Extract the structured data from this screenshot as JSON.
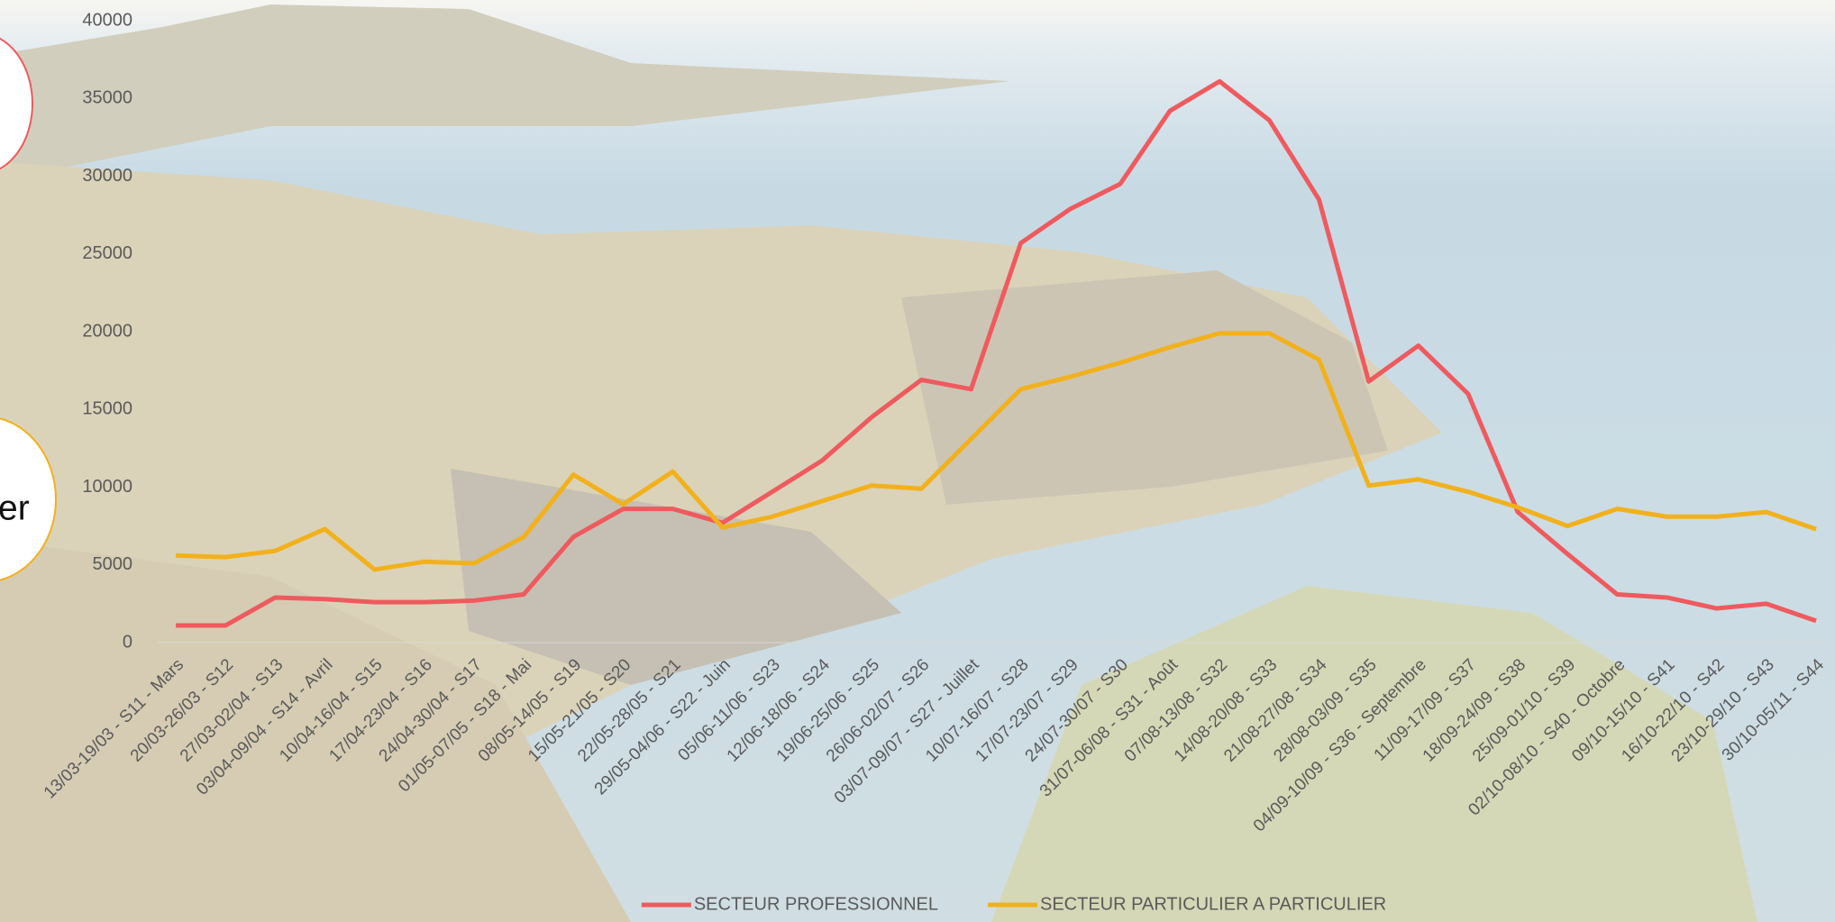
{
  "chart_data": {
    "type": "line",
    "categories": [
      "13/03-19/03 - S11 - Mars",
      "20/03-26/03 - S12",
      "27/03-02/04 - S13",
      "03/04-09/04 - S14 - Avril",
      "10/04-16/04 - S15",
      "17/04-23/04 - S16",
      "24/04-30/04 - S17",
      "01/05-07/05 - S18 - Mai",
      "08/05-14/05 - S19",
      "15/05-21/05 - S20",
      "22/05-28/05 - S21",
      "29/05-04/06 - S22 - Juin",
      "05/06-11/06 - S23",
      "12/06-18/06 - S24",
      "19/06-25/06 - S25",
      "26/06-02/07 - S26",
      "03/07-09/07 - S27 - Juillet",
      "10/07-16/07 - S28",
      "17/07-23/07 - S29",
      "24/07-30/07 - S30",
      "31/07-06/08 - S31 - Août",
      "07/08-13/08 - S32",
      "14/08-20/08 - S33",
      "21/08-27/08 - S34",
      "28/08-03/09 - S35",
      "04/09-10/09 - S36 - Septembre",
      "11/09-17/09 - S37",
      "18/09-24/09 - S38",
      "25/09-01/10 - S39",
      "02/10-08/10 - S40 - Octobre",
      "09/10-15/10 - S41",
      "16/10-22/10 - S42",
      "23/10-29/10 - S43",
      "30/10-05/11 - S44"
    ],
    "series": [
      {
        "name": "SECTEUR PROFESSIONNEL",
        "color": "#ef5a5e",
        "values": [
          1100,
          1100,
          2900,
          2800,
          2600,
          2600,
          2700,
          3100,
          6800,
          8600,
          8600,
          7700,
          9700,
          11700,
          14500,
          16900,
          16300,
          25700,
          27900,
          29500,
          34200,
          36100,
          33600,
          28500,
          16800,
          19100,
          16000,
          8400,
          5700,
          3100,
          2900,
          2200,
          2500,
          1400
        ]
      },
      {
        "name": "SECTEUR PARTICULIER A PARTICULIER",
        "color": "#f2b11c",
        "values": [
          5600,
          5500,
          5900,
          7300,
          4700,
          5200,
          5100,
          6800,
          10800,
          8900,
          11000,
          7400,
          8100,
          9100,
          10100,
          9900,
          13100,
          16300,
          17100,
          18000,
          19000,
          19900,
          19900,
          18200,
          10100,
          10500,
          9700,
          8700,
          7500,
          8600,
          8100,
          8100,
          8400,
          7300
        ]
      }
    ],
    "ylim": [
      0,
      40000
    ],
    "yticks": [
      0,
      5000,
      10000,
      15000,
      20000,
      25000,
      30000,
      35000,
      40000
    ],
    "legend": "bottom"
  },
  "callouts": [
    "er"
  ]
}
